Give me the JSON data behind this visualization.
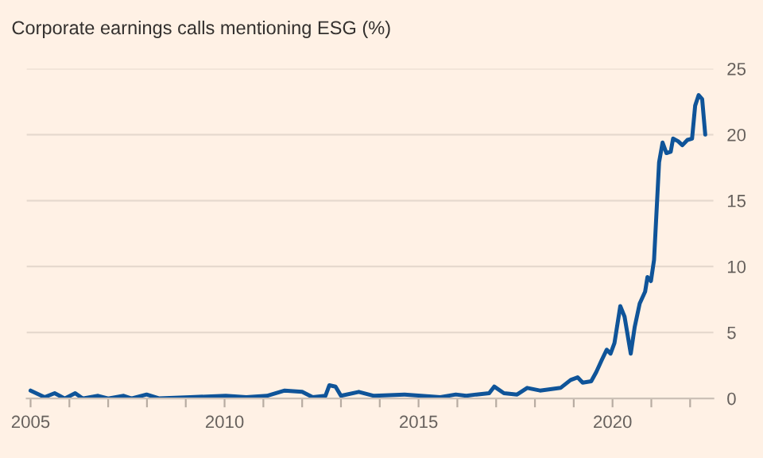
{
  "chart_data": {
    "type": "line",
    "title": "Corporate earnings calls mentioning ESG (%)",
    "x": [
      2005.0,
      2005.36,
      2005.62,
      2005.88,
      2006.15,
      2006.34,
      2006.74,
      2007.0,
      2007.4,
      2007.6,
      2007.99,
      2008.32,
      2009.11,
      2010.03,
      2010.56,
      2011.09,
      2011.55,
      2012.0,
      2012.27,
      2012.6,
      2012.7,
      2012.86,
      2013.0,
      2013.46,
      2013.85,
      2014.64,
      2015.56,
      2015.96,
      2016.23,
      2016.49,
      2016.82,
      2016.95,
      2017.2,
      2017.54,
      2017.8,
      2018.13,
      2018.66,
      2018.92,
      2019.1,
      2019.23,
      2019.45,
      2019.58,
      2019.72,
      2019.85,
      2019.95,
      2020.05,
      2020.2,
      2020.31,
      2020.47,
      2020.57,
      2020.7,
      2020.84,
      2020.9,
      2020.99,
      2021.07,
      2021.2,
      2021.29,
      2021.39,
      2021.5,
      2021.56,
      2021.69,
      2021.8,
      2021.93,
      2022.05,
      2022.13,
      2022.22,
      2022.31,
      2022.39
    ],
    "series": [
      {
        "color": "#0f5499",
        "values": [
          0.6,
          0.1,
          0.4,
          0.0,
          0.4,
          0.0,
          0.2,
          0.0,
          0.2,
          0.0,
          0.3,
          0.0,
          0.1,
          0.2,
          0.1,
          0.2,
          0.6,
          0.5,
          0.1,
          0.2,
          1.0,
          0.9,
          0.2,
          0.5,
          0.2,
          0.3,
          0.1,
          0.3,
          0.2,
          0.3,
          0.4,
          0.9,
          0.4,
          0.3,
          0.8,
          0.6,
          0.8,
          1.4,
          1.6,
          1.2,
          1.3,
          2.0,
          2.9,
          3.7,
          3.4,
          4.2,
          7.0,
          6.2,
          3.4,
          5.4,
          7.2,
          8.1,
          9.2,
          8.9,
          10.5,
          17.9,
          19.4,
          18.6,
          18.7,
          19.7,
          19.5,
          19.2,
          19.6,
          19.7,
          22.2,
          23.0,
          22.7,
          20.0
        ]
      }
    ],
    "xlim": [
      2004.9,
      2022.6
    ],
    "ylim": [
      0,
      25
    ],
    "xticks": [
      2005,
      {
        "value": 2006,
        "label": null
      },
      {
        "value": 2007,
        "label": null
      },
      {
        "value": 2008,
        "label": null
      },
      {
        "value": 2009,
        "label": null
      },
      2010,
      {
        "value": 2011,
        "label": null
      },
      {
        "value": 2012,
        "label": null
      },
      {
        "value": 2013,
        "label": null
      },
      {
        "value": 2014,
        "label": null
      },
      2015,
      {
        "value": 2016,
        "label": null
      },
      {
        "value": 2017,
        "label": null
      },
      {
        "value": 2018,
        "label": null
      },
      {
        "value": 2019,
        "label": null
      },
      2020,
      {
        "value": 2021,
        "label": null
      },
      {
        "value": 2022,
        "label": null
      }
    ],
    "yticks": [
      0,
      5,
      10,
      15,
      20,
      25
    ],
    "grid": "y",
    "legend": false,
    "line_style": "solid",
    "marker": "none"
  }
}
